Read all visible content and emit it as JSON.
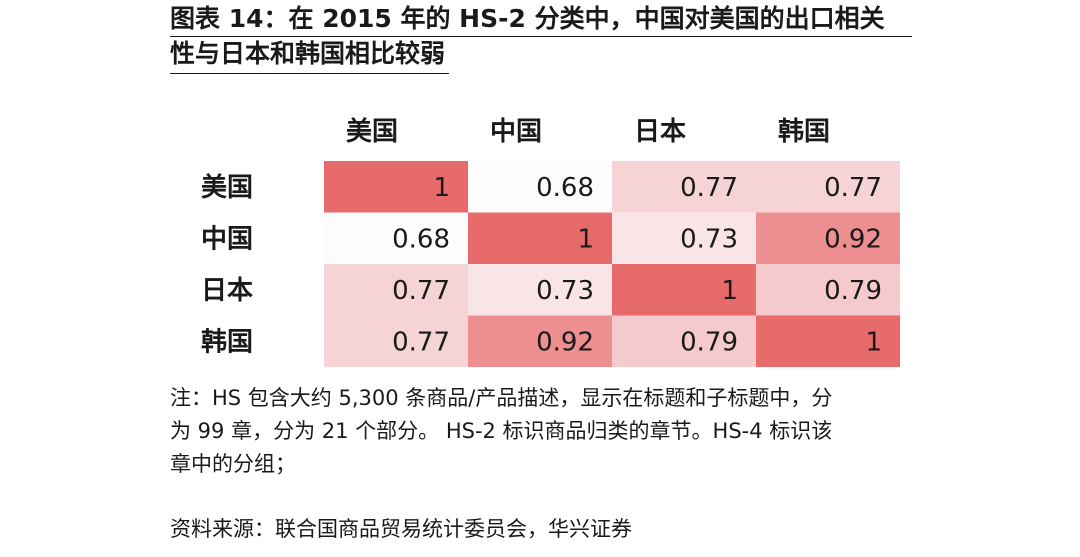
{
  "title": {
    "line1": "图表 14：在 2015 年的 HS-2 分类中，中国对美国的出口相关",
    "line2": "性与日本和韩国相比较弱"
  },
  "chart_data": {
    "type": "heatmap",
    "columns": [
      "美国",
      "中国",
      "日本",
      "韩国"
    ],
    "rows": [
      "美国",
      "中国",
      "日本",
      "韩国"
    ],
    "values": [
      [
        "1",
        "0.68",
        "0.77",
        "0.77"
      ],
      [
        "0.68",
        "1",
        "0.73",
        "0.92"
      ],
      [
        "0.77",
        "0.73",
        "1",
        "0.79"
      ],
      [
        "0.77",
        "0.92",
        "0.79",
        "1"
      ]
    ],
    "color_scale": {
      "low": "#fcfcff",
      "high": "#e86b6b",
      "min": 0.68,
      "max": 1
    }
  },
  "note": {
    "line1": "注：HS 包含大约 5,300 条商品/产品描述，显示在标题和子标题中，分",
    "line2": "为 99 章，分为 21 个部分。 HS-2 标识商品归类的章节。HS-4 标识该",
    "line3": "章中的分组；"
  },
  "source": "资料来源：联合国商品贸易统计委员会，华兴证券"
}
